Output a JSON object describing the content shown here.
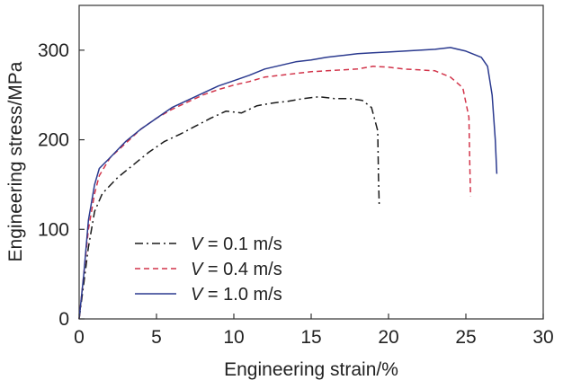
{
  "chart_data": {
    "type": "line",
    "xlabel": "Engineering strain/%",
    "ylabel": "Engineering stress/MPa",
    "xlim": [
      0,
      30
    ],
    "ylim": [
      0,
      350
    ],
    "x_ticks": [
      0,
      5,
      10,
      15,
      20,
      25,
      30
    ],
    "y_ticks": [
      0,
      100,
      200,
      300
    ],
    "grid": false,
    "legend_position": "bottom-left",
    "series": [
      {
        "name": "V = 0.1 m/s",
        "legend_prefix": "V",
        "legend_suffix": " = 0.1 m/s",
        "color": "#1a1a1a",
        "dash": "dashdot",
        "x": [
          0,
          0.3,
          0.6,
          1.0,
          1.5,
          2.5,
          3.5,
          4.5,
          5.5,
          6.5,
          7.5,
          8.5,
          9.5,
          10.5,
          11.5,
          12.5,
          13.5,
          14.5,
          15.5,
          16.5,
          17.5,
          18.3,
          18.9,
          19.3,
          19.35,
          19.4
        ],
        "y": [
          0,
          40,
          80,
          120,
          140,
          158,
          172,
          186,
          198,
          206,
          215,
          224,
          232,
          230,
          238,
          241,
          243,
          246,
          248,
          246,
          246,
          244,
          236,
          210,
          160,
          125
        ]
      },
      {
        "name": "V = 0.4 m/s",
        "legend_prefix": "V",
        "legend_suffix": " = 0.4 m/s",
        "color": "#d2344a",
        "dash": "dashed",
        "x": [
          0,
          0.3,
          0.6,
          1.0,
          1.3,
          2.0,
          3.0,
          4.0,
          5.0,
          6.0,
          7.0,
          8.0,
          9.0,
          10.0,
          11.0,
          12.0,
          13.0,
          14.0,
          15.0,
          16.0,
          17.0,
          18.0,
          19.0,
          20.0,
          21.0,
          22.0,
          23.0,
          24.0,
          24.8,
          25.2,
          25.25,
          25.3
        ],
        "y": [
          0,
          50,
          100,
          140,
          160,
          180,
          196,
          212,
          224,
          234,
          242,
          250,
          256,
          261,
          265,
          270,
          272,
          274,
          276,
          277,
          278,
          279,
          282,
          281,
          279,
          278,
          277,
          270,
          258,
          225,
          175,
          137
        ]
      },
      {
        "name": "V = 1.0 m/s",
        "legend_prefix": "V",
        "legend_suffix": " = 1.0 m/s",
        "color": "#2b3a8f",
        "dash": "solid",
        "x": [
          0,
          0.3,
          0.6,
          1.0,
          1.3,
          2.0,
          3.0,
          4.0,
          5.0,
          6.0,
          7.0,
          8.0,
          9.0,
          10.0,
          11.0,
          12.0,
          13.0,
          14.0,
          15.0,
          16.0,
          17.0,
          18.0,
          19.0,
          20.0,
          21.0,
          22.0,
          23.0,
          24.0,
          25.0,
          26.0,
          26.4,
          26.7,
          26.9,
          27.0
        ],
        "y": [
          0,
          50,
          110,
          150,
          168,
          180,
          198,
          212,
          224,
          236,
          244,
          252,
          260,
          266,
          272,
          279,
          283,
          287,
          289,
          292,
          294,
          296,
          297,
          298,
          299,
          300,
          301,
          303,
          299,
          292,
          282,
          250,
          200,
          162
        ]
      }
    ]
  }
}
